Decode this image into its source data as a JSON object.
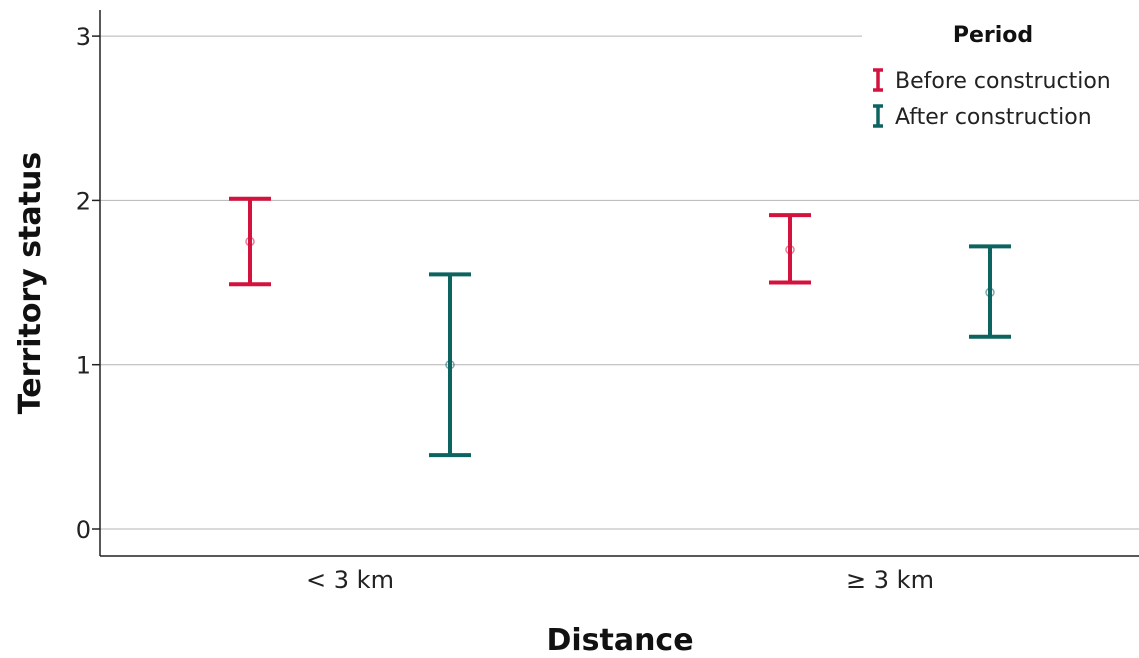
{
  "chart_data": {
    "type": "errorbar",
    "xlabel": "Distance",
    "ylabel": "Territory status",
    "categories": [
      "< 3 km",
      "≥ 3 km"
    ],
    "ylim": [
      0,
      3
    ],
    "yticks": [
      0,
      1,
      2,
      3
    ],
    "grid": true,
    "legend": {
      "title": "Period",
      "position": "top-right"
    },
    "series": [
      {
        "name": "Before construction",
        "color": "#d4123e",
        "points": [
          {
            "category": "< 3 km",
            "mean": 1.75,
            "lower": 1.49,
            "upper": 2.01
          },
          {
            "category": "≥ 3 km",
            "mean": 1.7,
            "lower": 1.5,
            "upper": 1.91
          }
        ]
      },
      {
        "name": "After construction",
        "color": "#0d6360",
        "points": [
          {
            "category": "< 3 km",
            "mean": 1.0,
            "lower": 0.45,
            "upper": 1.55
          },
          {
            "category": "≥ 3 km",
            "mean": 1.44,
            "lower": 1.17,
            "upper": 1.72
          }
        ]
      }
    ]
  }
}
